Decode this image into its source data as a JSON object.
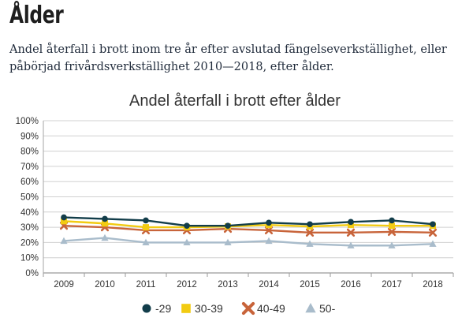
{
  "page": {
    "heading": "Ålder",
    "intro": "Andel återfall i brott inom tre år efter avslutad fängelseverkställighet, eller påbörjad frivårdsverkställighet 2010—2018, efter ålder."
  },
  "chart_data": {
    "type": "line",
    "title": "Andel återfall i brott efter ålder",
    "xlabel": "",
    "ylabel": "",
    "categories": [
      "2009",
      "2010",
      "2011",
      "2012",
      "2013",
      "2014",
      "2015",
      "2016",
      "2017",
      "2018"
    ],
    "y_ticks": [
      "0%",
      "10%",
      "20%",
      "30%",
      "40%",
      "50%",
      "60%",
      "70%",
      "80%",
      "90%",
      "100%"
    ],
    "ylim": [
      0,
      100
    ],
    "grid": true,
    "legend_position": "bottom",
    "series": [
      {
        "name": "-29",
        "color": "#123d4a",
        "marker": "circle",
        "values": [
          36.5,
          35.5,
          34.5,
          31,
          31,
          33,
          32,
          33.5,
          34.5,
          32
        ]
      },
      {
        "name": "30-39",
        "color": "#f2cb12",
        "marker": "square",
        "values": [
          34,
          32.5,
          30,
          30,
          30.5,
          31.5,
          30.5,
          31.5,
          31,
          31
        ]
      },
      {
        "name": "40-49",
        "color": "#c8643a",
        "marker": "x",
        "values": [
          31,
          30,
          28,
          28,
          29,
          28,
          26.5,
          26.5,
          27,
          26.5
        ]
      },
      {
        "name": "50-",
        "color": "#a9bccb",
        "marker": "triangle",
        "values": [
          21,
          23,
          20,
          20,
          20,
          21,
          19,
          18,
          18,
          19
        ]
      }
    ]
  }
}
